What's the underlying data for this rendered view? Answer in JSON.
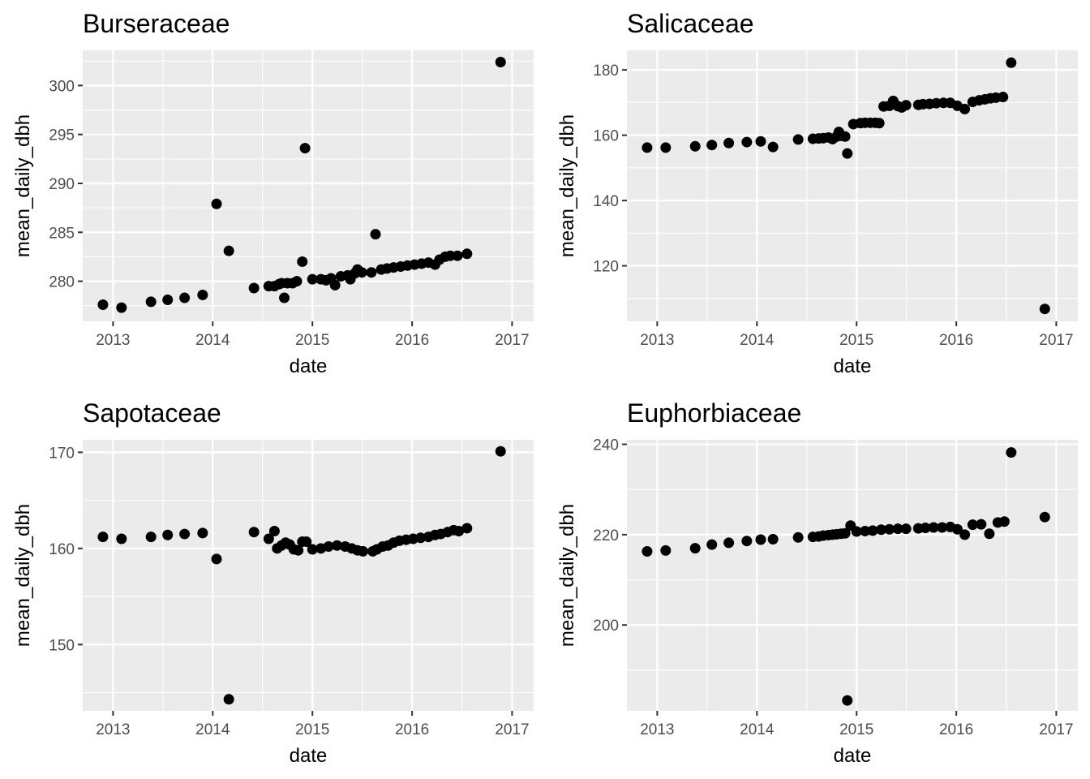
{
  "chart_data": [
    {
      "type": "scatter",
      "title": "Burseraceae",
      "xlabel": "date",
      "ylabel": "mean_daily_dbh",
      "xlim": [
        "2012-09-12",
        "2017-03-21"
      ],
      "ylim": [
        275.9,
        303.6
      ],
      "xticks": [
        "2013",
        "2014",
        "2015",
        "2016",
        "2017"
      ],
      "yticks": [
        280,
        285,
        290,
        295,
        300
      ],
      "grid": true,
      "color": "#000000",
      "points": [
        {
          "x": "2012-11-25",
          "y": 277.6
        },
        {
          "x": "2013-02-01",
          "y": 277.3
        },
        {
          "x": "2013-05-20",
          "y": 277.9
        },
        {
          "x": "2013-07-20",
          "y": 278.1
        },
        {
          "x": "2013-09-20",
          "y": 278.3
        },
        {
          "x": "2013-11-25",
          "y": 278.6
        },
        {
          "x": "2014-01-15",
          "y": 287.9
        },
        {
          "x": "2014-03-01",
          "y": 283.1
        },
        {
          "x": "2014-06-01",
          "y": 279.3
        },
        {
          "x": "2014-07-25",
          "y": 279.5
        },
        {
          "x": "2014-08-15",
          "y": 279.5
        },
        {
          "x": "2014-09-01",
          "y": 279.7
        },
        {
          "x": "2014-09-20",
          "y": 278.3
        },
        {
          "x": "2014-09-10",
          "y": 279.8
        },
        {
          "x": "2014-10-01",
          "y": 279.8
        },
        {
          "x": "2014-10-20",
          "y": 279.8
        },
        {
          "x": "2014-11-05",
          "y": 280.0
        },
        {
          "x": "2014-11-25",
          "y": 282.0
        },
        {
          "x": "2014-12-05",
          "y": 293.6
        },
        {
          "x": "2015-01-01",
          "y": 280.2
        },
        {
          "x": "2015-02-01",
          "y": 280.2
        },
        {
          "x": "2015-02-20",
          "y": 280.1
        },
        {
          "x": "2015-03-10",
          "y": 280.3
        },
        {
          "x": "2015-03-25",
          "y": 279.6
        },
        {
          "x": "2015-04-15",
          "y": 280.5
        },
        {
          "x": "2015-05-10",
          "y": 280.6
        },
        {
          "x": "2015-05-20",
          "y": 280.2
        },
        {
          "x": "2015-06-05",
          "y": 280.8
        },
        {
          "x": "2015-06-15",
          "y": 281.2
        },
        {
          "x": "2015-07-01",
          "y": 280.9
        },
        {
          "x": "2015-08-05",
          "y": 280.9
        },
        {
          "x": "2015-08-20",
          "y": 284.8
        },
        {
          "x": "2015-09-10",
          "y": 281.2
        },
        {
          "x": "2015-10-01",
          "y": 281.3
        },
        {
          "x": "2015-10-25",
          "y": 281.4
        },
        {
          "x": "2015-11-20",
          "y": 281.5
        },
        {
          "x": "2015-12-15",
          "y": 281.6
        },
        {
          "x": "2016-01-10",
          "y": 281.7
        },
        {
          "x": "2016-02-05",
          "y": 281.8
        },
        {
          "x": "2016-03-01",
          "y": 281.9
        },
        {
          "x": "2016-03-25",
          "y": 281.7
        },
        {
          "x": "2016-04-10",
          "y": 282.2
        },
        {
          "x": "2016-05-01",
          "y": 282.5
        },
        {
          "x": "2016-05-20",
          "y": 282.6
        },
        {
          "x": "2016-06-15",
          "y": 282.6
        },
        {
          "x": "2016-07-20",
          "y": 282.8
        },
        {
          "x": "2016-11-20",
          "y": 302.4
        }
      ]
    },
    {
      "type": "scatter",
      "title": "Salicaceae",
      "xlabel": "date",
      "ylabel": "mean_daily_dbh",
      "xlim": [
        "2012-09-12",
        "2017-03-21"
      ],
      "ylim": [
        103,
        186
      ],
      "xticks": [
        "2013",
        "2014",
        "2015",
        "2016",
        "2017"
      ],
      "yticks": [
        120,
        140,
        160,
        180
      ],
      "grid": true,
      "color": "#000000",
      "points": [
        {
          "x": "2012-11-25",
          "y": 156.2
        },
        {
          "x": "2013-02-01",
          "y": 156.2
        },
        {
          "x": "2013-05-20",
          "y": 156.6
        },
        {
          "x": "2013-07-20",
          "y": 157.0
        },
        {
          "x": "2013-09-20",
          "y": 157.6
        },
        {
          "x": "2013-11-25",
          "y": 157.9
        },
        {
          "x": "2014-01-15",
          "y": 158.1
        },
        {
          "x": "2014-03-01",
          "y": 156.4
        },
        {
          "x": "2014-06-01",
          "y": 158.7
        },
        {
          "x": "2014-07-25",
          "y": 158.9
        },
        {
          "x": "2014-08-15",
          "y": 159.0
        },
        {
          "x": "2014-09-01",
          "y": 159.1
        },
        {
          "x": "2014-09-20",
          "y": 159.3
        },
        {
          "x": "2014-10-05",
          "y": 158.8
        },
        {
          "x": "2014-10-20",
          "y": 159.6
        },
        {
          "x": "2014-10-28",
          "y": 161.0
        },
        {
          "x": "2014-11-05",
          "y": 159.8
        },
        {
          "x": "2014-11-20",
          "y": 159.6
        },
        {
          "x": "2014-11-28",
          "y": 154.4
        },
        {
          "x": "2014-12-20",
          "y": 163.4
        },
        {
          "x": "2015-01-15",
          "y": 163.7
        },
        {
          "x": "2015-02-01",
          "y": 163.8
        },
        {
          "x": "2015-02-20",
          "y": 163.8
        },
        {
          "x": "2015-03-10",
          "y": 163.8
        },
        {
          "x": "2015-03-25",
          "y": 163.7
        },
        {
          "x": "2015-04-10",
          "y": 168.8
        },
        {
          "x": "2015-05-01",
          "y": 169.0
        },
        {
          "x": "2015-05-15",
          "y": 170.5
        },
        {
          "x": "2015-06-01",
          "y": 168.9
        },
        {
          "x": "2015-06-15",
          "y": 168.5
        },
        {
          "x": "2015-07-01",
          "y": 169.2
        },
        {
          "x": "2015-08-15",
          "y": 169.3
        },
        {
          "x": "2015-09-01",
          "y": 169.5
        },
        {
          "x": "2015-09-25",
          "y": 169.6
        },
        {
          "x": "2015-10-20",
          "y": 169.8
        },
        {
          "x": "2015-11-15",
          "y": 169.9
        },
        {
          "x": "2015-12-10",
          "y": 169.9
        },
        {
          "x": "2016-01-05",
          "y": 169.0
        },
        {
          "x": "2016-02-01",
          "y": 168.0
        },
        {
          "x": "2016-03-01",
          "y": 170.2
        },
        {
          "x": "2016-03-25",
          "y": 170.7
        },
        {
          "x": "2016-04-15",
          "y": 171.0
        },
        {
          "x": "2016-05-05",
          "y": 171.3
        },
        {
          "x": "2016-05-25",
          "y": 171.5
        },
        {
          "x": "2016-06-20",
          "y": 171.7
        },
        {
          "x": "2016-07-20",
          "y": 182.2
        },
        {
          "x": "2016-11-20",
          "y": 106.8
        }
      ]
    },
    {
      "type": "scatter",
      "title": "Sapotaceae",
      "xlabel": "date",
      "ylabel": "mean_daily_dbh",
      "xlim": [
        "2012-09-12",
        "2017-03-21"
      ],
      "ylim": [
        143.1,
        171.3
      ],
      "xticks": [
        "2013",
        "2014",
        "2015",
        "2016",
        "2017"
      ],
      "yticks": [
        150,
        160,
        170
      ],
      "grid": true,
      "color": "#000000",
      "points": [
        {
          "x": "2012-11-25",
          "y": 161.2
        },
        {
          "x": "2013-02-01",
          "y": 161.0
        },
        {
          "x": "2013-05-20",
          "y": 161.2
        },
        {
          "x": "2013-07-20",
          "y": 161.4
        },
        {
          "x": "2013-09-20",
          "y": 161.5
        },
        {
          "x": "2013-11-25",
          "y": 161.6
        },
        {
          "x": "2014-01-15",
          "y": 158.9
        },
        {
          "x": "2014-03-01",
          "y": 144.3
        },
        {
          "x": "2014-06-01",
          "y": 161.7
        },
        {
          "x": "2014-07-25",
          "y": 161.0
        },
        {
          "x": "2014-08-15",
          "y": 161.8
        },
        {
          "x": "2014-08-25",
          "y": 160.0
        },
        {
          "x": "2014-09-10",
          "y": 160.3
        },
        {
          "x": "2014-09-25",
          "y": 160.6
        },
        {
          "x": "2014-10-10",
          "y": 160.4
        },
        {
          "x": "2014-10-25",
          "y": 159.9
        },
        {
          "x": "2014-11-10",
          "y": 159.8
        },
        {
          "x": "2014-11-25",
          "y": 160.7
        },
        {
          "x": "2014-12-10",
          "y": 160.7
        },
        {
          "x": "2015-01-01",
          "y": 159.9
        },
        {
          "x": "2015-02-01",
          "y": 160.0
        },
        {
          "x": "2015-03-01",
          "y": 160.2
        },
        {
          "x": "2015-04-01",
          "y": 160.3
        },
        {
          "x": "2015-05-01",
          "y": 160.2
        },
        {
          "x": "2015-05-25",
          "y": 160.0
        },
        {
          "x": "2015-06-15",
          "y": 159.8
        },
        {
          "x": "2015-07-05",
          "y": 159.7
        },
        {
          "x": "2015-08-10",
          "y": 159.7
        },
        {
          "x": "2015-08-25",
          "y": 159.9
        },
        {
          "x": "2015-09-15",
          "y": 160.2
        },
        {
          "x": "2015-10-05",
          "y": 160.3
        },
        {
          "x": "2015-10-25",
          "y": 160.6
        },
        {
          "x": "2015-11-15",
          "y": 160.8
        },
        {
          "x": "2015-12-10",
          "y": 160.9
        },
        {
          "x": "2016-01-05",
          "y": 161.0
        },
        {
          "x": "2016-02-01",
          "y": 161.1
        },
        {
          "x": "2016-03-01",
          "y": 161.2
        },
        {
          "x": "2016-03-25",
          "y": 161.4
        },
        {
          "x": "2016-04-15",
          "y": 161.5
        },
        {
          "x": "2016-05-10",
          "y": 161.7
        },
        {
          "x": "2016-06-01",
          "y": 161.9
        },
        {
          "x": "2016-06-20",
          "y": 161.8
        },
        {
          "x": "2016-07-20",
          "y": 162.1
        },
        {
          "x": "2016-11-20",
          "y": 170.1
        }
      ]
    },
    {
      "type": "scatter",
      "title": "Euphorbiaceae",
      "xlabel": "date",
      "ylabel": "mean_daily_dbh",
      "xlim": [
        "2012-09-12",
        "2017-03-21"
      ],
      "ylim": [
        181,
        241
      ],
      "xticks": [
        "2013",
        "2014",
        "2015",
        "2016",
        "2017"
      ],
      "yticks": [
        200,
        220,
        240
      ],
      "grid": true,
      "color": "#000000",
      "points": [
        {
          "x": "2012-11-25",
          "y": 216.3
        },
        {
          "x": "2013-02-01",
          "y": 216.5
        },
        {
          "x": "2013-05-20",
          "y": 217.0
        },
        {
          "x": "2013-07-20",
          "y": 217.8
        },
        {
          "x": "2013-09-20",
          "y": 218.2
        },
        {
          "x": "2013-11-25",
          "y": 218.6
        },
        {
          "x": "2014-01-15",
          "y": 218.9
        },
        {
          "x": "2014-03-01",
          "y": 219.0
        },
        {
          "x": "2014-06-01",
          "y": 219.4
        },
        {
          "x": "2014-07-25",
          "y": 219.5
        },
        {
          "x": "2014-08-15",
          "y": 219.6
        },
        {
          "x": "2014-09-01",
          "y": 219.8
        },
        {
          "x": "2014-09-20",
          "y": 219.9
        },
        {
          "x": "2014-10-05",
          "y": 220.0
        },
        {
          "x": "2014-10-20",
          "y": 220.1
        },
        {
          "x": "2014-11-05",
          "y": 220.2
        },
        {
          "x": "2014-11-20",
          "y": 220.3
        },
        {
          "x": "2014-11-28",
          "y": 183.3
        },
        {
          "x": "2014-12-10",
          "y": 222.0
        },
        {
          "x": "2015-01-01",
          "y": 220.7
        },
        {
          "x": "2015-02-01",
          "y": 220.8
        },
        {
          "x": "2015-03-01",
          "y": 220.9
        },
        {
          "x": "2015-04-01",
          "y": 221.1
        },
        {
          "x": "2015-05-01",
          "y": 221.2
        },
        {
          "x": "2015-06-01",
          "y": 221.3
        },
        {
          "x": "2015-07-01",
          "y": 221.3
        },
        {
          "x": "2015-08-15",
          "y": 221.4
        },
        {
          "x": "2015-09-10",
          "y": 221.5
        },
        {
          "x": "2015-10-10",
          "y": 221.6
        },
        {
          "x": "2015-11-10",
          "y": 221.6
        },
        {
          "x": "2015-12-10",
          "y": 221.7
        },
        {
          "x": "2016-01-05",
          "y": 221.2
        },
        {
          "x": "2016-02-01",
          "y": 220.0
        },
        {
          "x": "2016-03-01",
          "y": 222.2
        },
        {
          "x": "2016-04-01",
          "y": 222.3
        },
        {
          "x": "2016-05-01",
          "y": 220.2
        },
        {
          "x": "2016-06-01",
          "y": 222.7
        },
        {
          "x": "2016-06-25",
          "y": 222.9
        },
        {
          "x": "2016-07-20",
          "y": 238.2
        },
        {
          "x": "2016-11-20",
          "y": 223.9
        }
      ]
    }
  ]
}
